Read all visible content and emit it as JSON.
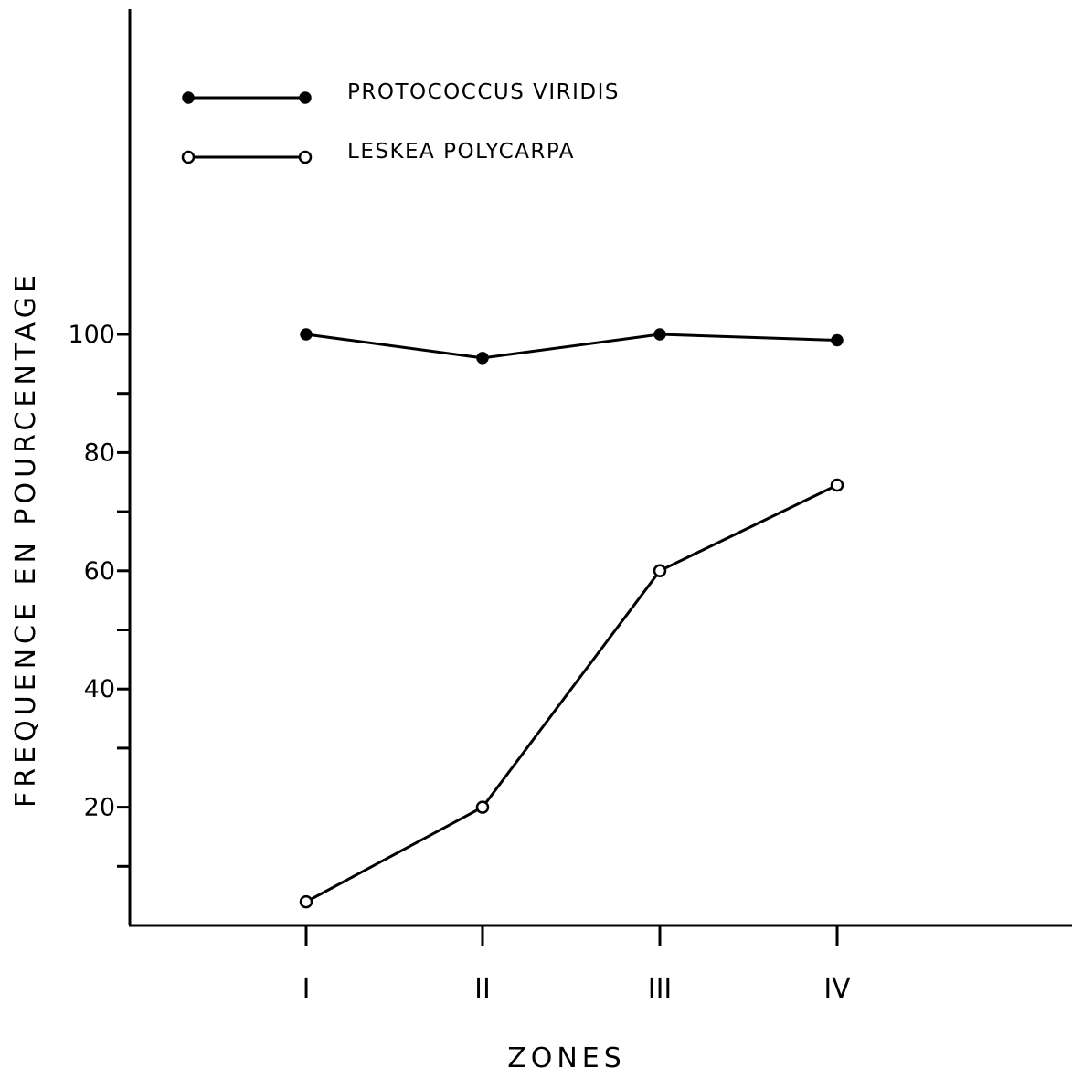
{
  "chart_data": {
    "type": "line",
    "xlabel": "ZONES",
    "ylabel": "FREQUENCE EN POURCENTAGE",
    "categories": [
      "I",
      "II",
      "III",
      "IV"
    ],
    "series": [
      {
        "name": "PROTOCOCCUS VIRIDIS",
        "marker": "filled-circle",
        "values": [
          100,
          96,
          100,
          99
        ]
      },
      {
        "name": "LESKEA POLYCARPA",
        "marker": "open-circle",
        "values": [
          4,
          20,
          60,
          74.5
        ]
      }
    ],
    "y_ticks": [
      20,
      40,
      60,
      80,
      100
    ],
    "y_minor_ticks": [
      10,
      30,
      50,
      70,
      90
    ],
    "ylim": [
      0,
      100
    ],
    "grid": false,
    "legend": "top-left",
    "line_color": "#000000",
    "background": "#ffffff"
  }
}
